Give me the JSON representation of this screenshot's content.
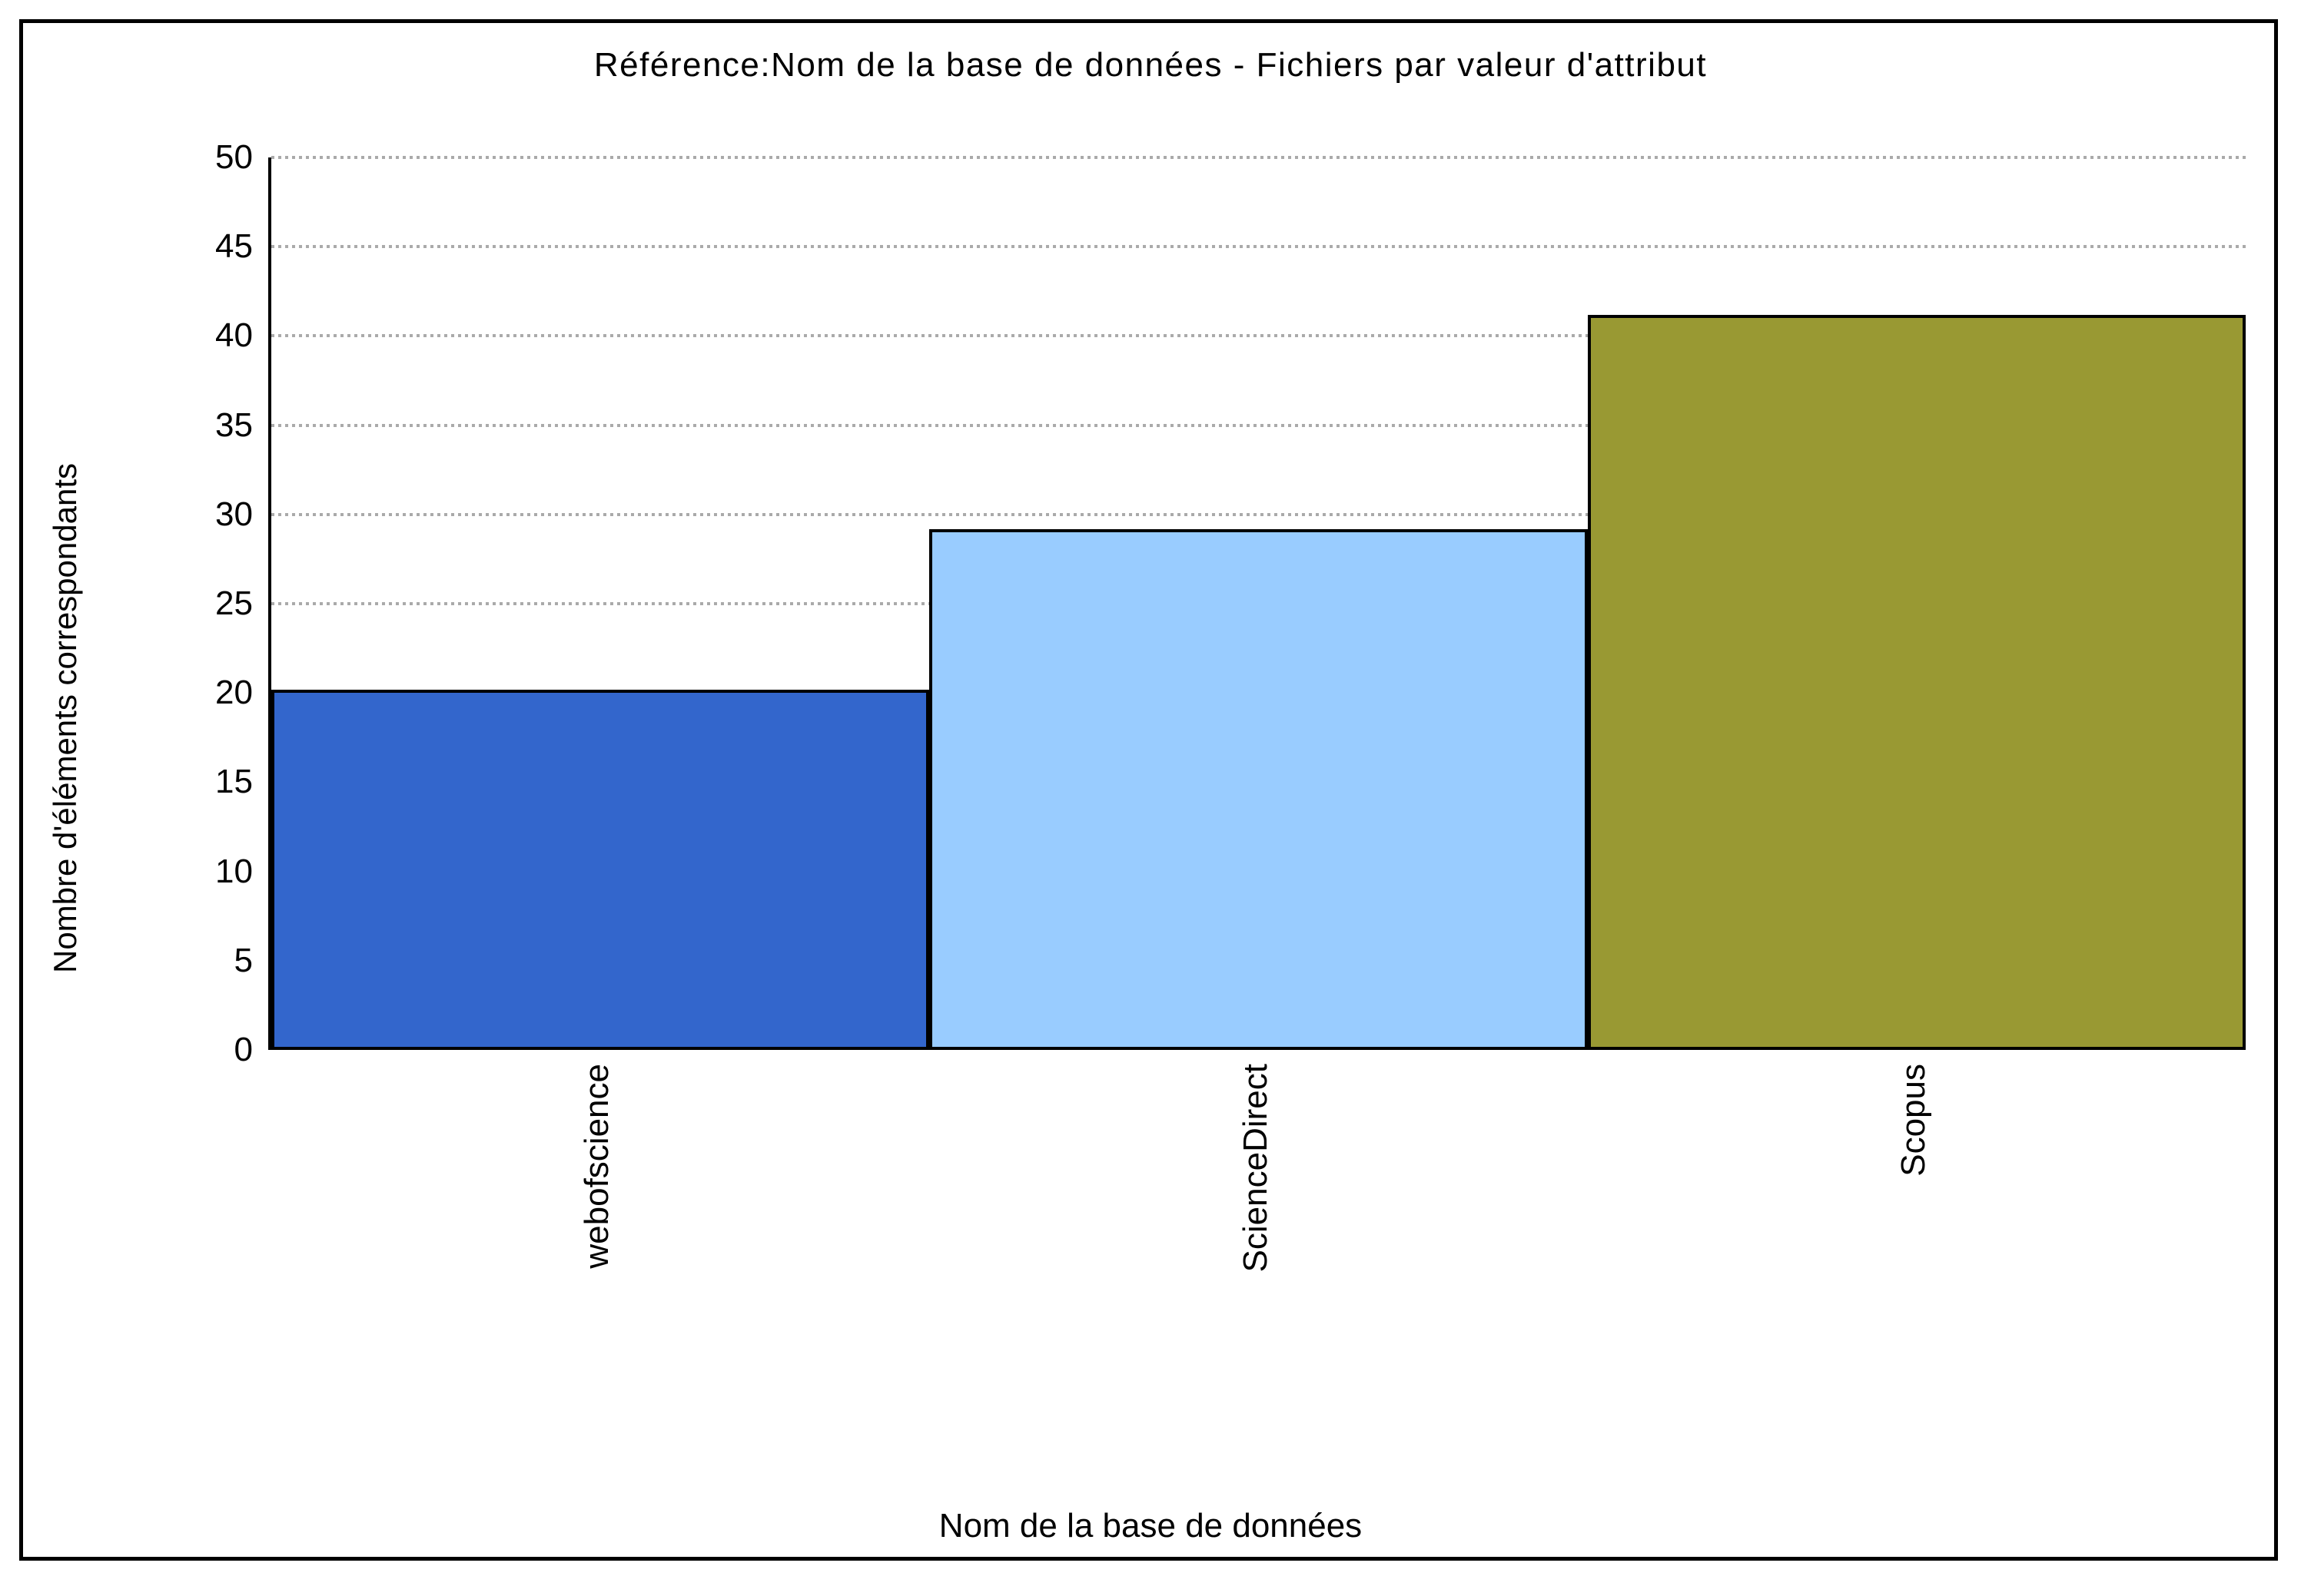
{
  "chart_data": {
    "type": "bar",
    "title": "Référence:Nom de la base de données - Fichiers par valeur d'attribut",
    "xlabel": "Nom de la base de données",
    "ylabel": "Nombre d'éléments correspondants",
    "categories": [
      "webofscience",
      "ScienceDirect",
      "Scopus"
    ],
    "values": [
      20,
      29,
      41
    ],
    "bar_colors": [
      "#3366CC",
      "#99CCFF",
      "#999933"
    ],
    "ylim": [
      0,
      50
    ],
    "ytick_step": 5,
    "yticks": [
      0,
      5,
      10,
      15,
      20,
      25,
      30,
      35,
      40,
      45,
      50
    ],
    "grid": "horizontal-dotted",
    "legend_position": "none"
  },
  "colors": {
    "background": "#FFFFFF",
    "frame_border": "#000000",
    "axis": "#000000",
    "gridline": "#AAAAAA",
    "bar_border": "#000000",
    "text": "#000000"
  }
}
